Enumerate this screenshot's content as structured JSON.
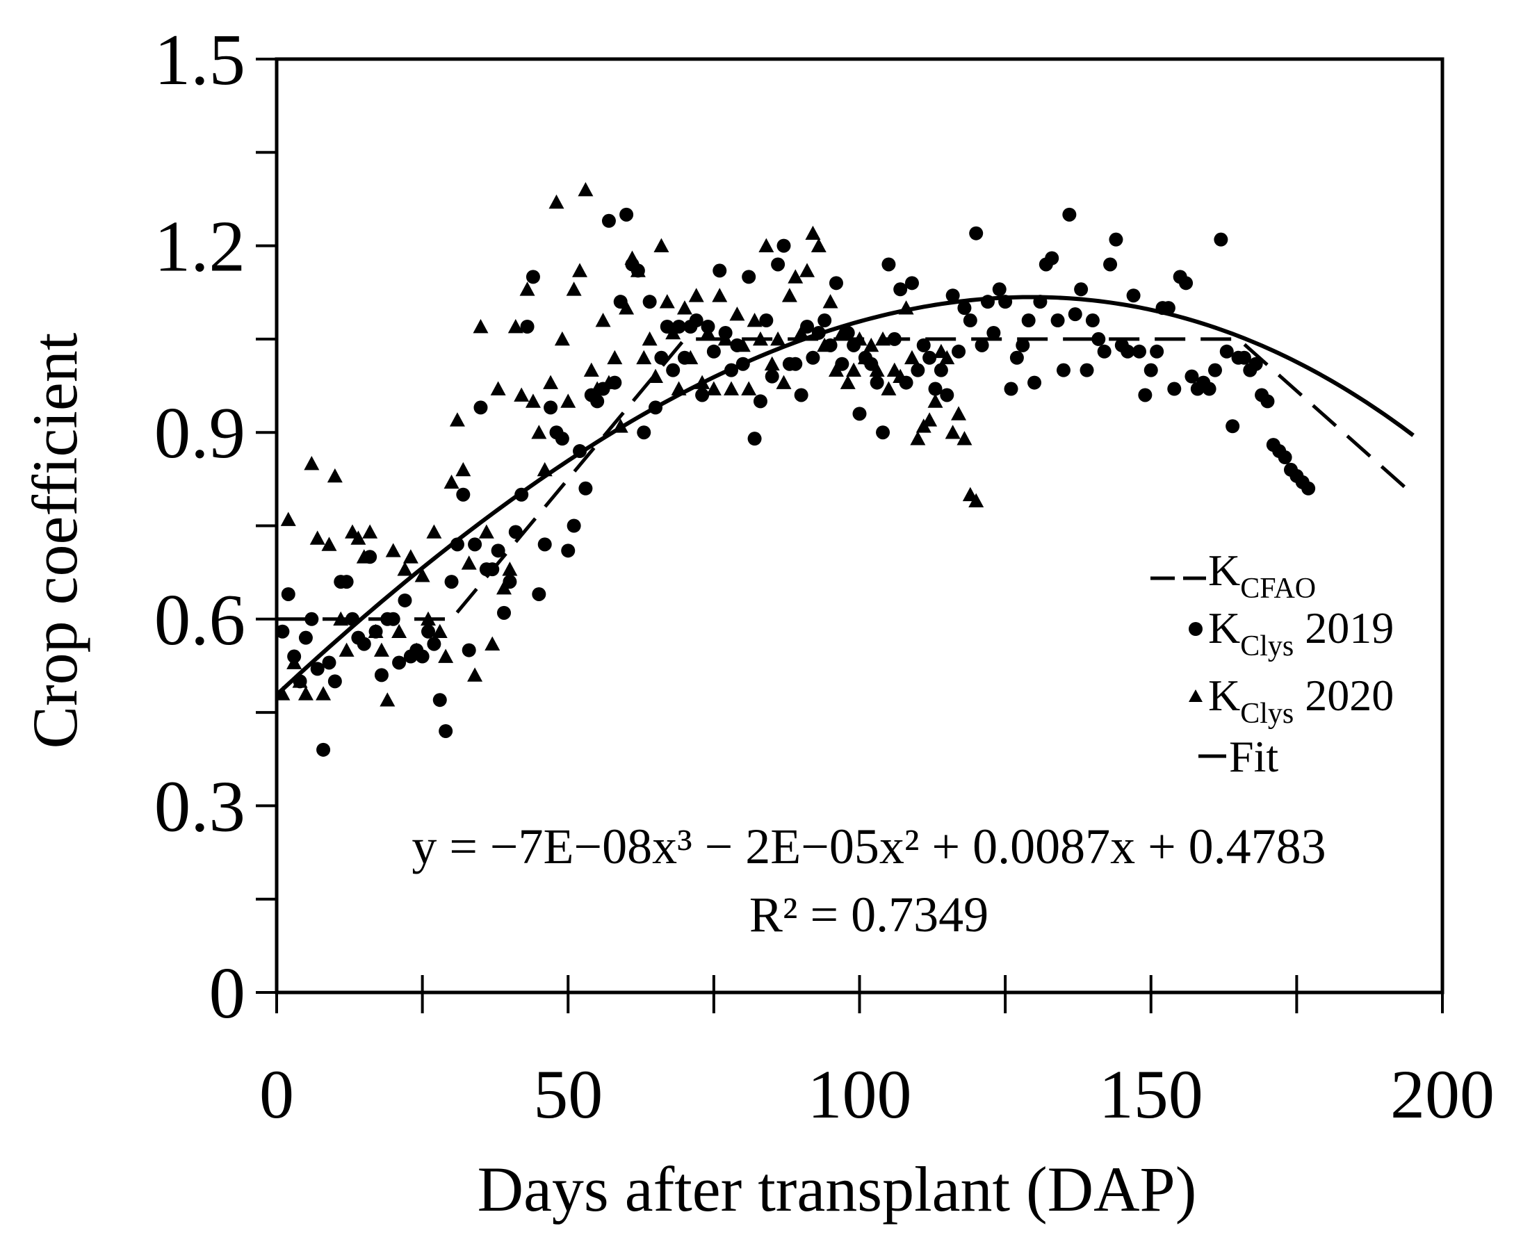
{
  "chart_data": {
    "type": "scatter",
    "title": "",
    "xlabel": "Days after transplant (DAP)",
    "ylabel": "Crop coefficient",
    "xlim": [
      0,
      200
    ],
    "ylim": [
      0,
      1.5
    ],
    "x_ticks": [
      0,
      50,
      100,
      150,
      200
    ],
    "x_tick_labels": [
      "0",
      "50",
      "100",
      "150",
      "200"
    ],
    "y_ticks": [
      0,
      0.3,
      0.6,
      0.9,
      1.2,
      1.5
    ],
    "y_tick_labels": [
      "0",
      "0.3",
      "0.6",
      "0.9",
      "1.2",
      "1.5"
    ],
    "grid": false,
    "legend_position": "right",
    "legend": [
      {
        "key": "fao",
        "marker": "dash",
        "label": "K",
        "subscript": "CFAO",
        "suffix": ""
      },
      {
        "key": "lys2019",
        "marker": "circle",
        "label": "K",
        "subscript": "Clys",
        "suffix": " 2019"
      },
      {
        "key": "lys2020",
        "marker": "triangle",
        "label": "K",
        "subscript": "Clys",
        "suffix": " 2020"
      },
      {
        "key": "fit",
        "marker": "line",
        "label": "Fit",
        "subscript": "",
        "suffix": ""
      }
    ],
    "equation": "y = −7E−08x³ − 2E−05x² + 0.0087x + 0.4783",
    "r_squared": "R² = 0.7349",
    "fit_coefficients": {
      "a3": -7e-08,
      "a2": -2e-05,
      "a1": 0.0087,
      "a0": 0.4783
    },
    "fit_range": [
      0,
      195
    ],
    "series": [
      {
        "name": "KcFAO",
        "style": "dashed-line",
        "points": [
          [
            0,
            0.6
          ],
          [
            30,
            0.6
          ],
          [
            70,
            1.05
          ],
          [
            165,
            1.05
          ],
          [
            195,
            0.8
          ]
        ]
      },
      {
        "name": "Kclys 2019",
        "style": "circle",
        "points": [
          [
            1,
            0.58
          ],
          [
            2,
            0.64
          ],
          [
            3,
            0.54
          ],
          [
            4,
            0.5
          ],
          [
            5,
            0.57
          ],
          [
            6,
            0.6
          ],
          [
            7,
            0.52
          ],
          [
            8,
            0.39
          ],
          [
            9,
            0.53
          ],
          [
            10,
            0.5
          ],
          [
            11,
            0.66
          ],
          [
            12,
            0.66
          ],
          [
            13,
            0.6
          ],
          [
            14,
            0.57
          ],
          [
            15,
            0.56
          ],
          [
            16,
            0.7
          ],
          [
            17,
            0.58
          ],
          [
            18,
            0.51
          ],
          [
            19,
            0.6
          ],
          [
            20,
            0.6
          ],
          [
            21,
            0.53
          ],
          [
            22,
            0.63
          ],
          [
            23,
            0.54
          ],
          [
            24,
            0.55
          ],
          [
            25,
            0.54
          ],
          [
            26,
            0.58
          ],
          [
            27,
            0.56
          ],
          [
            28,
            0.47
          ],
          [
            29,
            0.42
          ],
          [
            30,
            0.66
          ],
          [
            31,
            0.72
          ],
          [
            32,
            0.8
          ],
          [
            33,
            0.55
          ],
          [
            34,
            0.72
          ],
          [
            35,
            0.94
          ],
          [
            36,
            0.68
          ],
          [
            37,
            0.68
          ],
          [
            38,
            0.71
          ],
          [
            39,
            0.61
          ],
          [
            40,
            0.66
          ],
          [
            41,
            0.74
          ],
          [
            42,
            0.8
          ],
          [
            43,
            1.07
          ],
          [
            44,
            1.15
          ],
          [
            45,
            0.64
          ],
          [
            46,
            0.72
          ],
          [
            47,
            0.94
          ],
          [
            48,
            0.9
          ],
          [
            49,
            0.89
          ],
          [
            50,
            0.71
          ],
          [
            51,
            0.75
          ],
          [
            52,
            0.87
          ],
          [
            53,
            0.81
          ],
          [
            54,
            0.96
          ],
          [
            55,
            0.95
          ],
          [
            56,
            0.97
          ],
          [
            57,
            1.24
          ],
          [
            58,
            0.98
          ],
          [
            59,
            1.11
          ],
          [
            60,
            1.25
          ],
          [
            61,
            1.17
          ],
          [
            62,
            1.16
          ],
          [
            63,
            0.9
          ],
          [
            64,
            1.11
          ],
          [
            65,
            0.94
          ],
          [
            66,
            1.02
          ],
          [
            67,
            1.07
          ],
          [
            68,
            1.0
          ],
          [
            69,
            1.07
          ],
          [
            70,
            1.02
          ],
          [
            71,
            1.07
          ],
          [
            72,
            1.08
          ],
          [
            73,
            0.96
          ],
          [
            74,
            1.07
          ],
          [
            75,
            1.03
          ],
          [
            76,
            1.16
          ],
          [
            77,
            1.06
          ],
          [
            78,
            1.0
          ],
          [
            79,
            1.04
          ],
          [
            80,
            1.01
          ],
          [
            81,
            1.15
          ],
          [
            82,
            0.89
          ],
          [
            83,
            0.95
          ],
          [
            84,
            1.08
          ],
          [
            85,
            0.99
          ],
          [
            86,
            1.17
          ],
          [
            87,
            1.2
          ],
          [
            88,
            1.01
          ],
          [
            89,
            1.01
          ],
          [
            90,
            0.96
          ],
          [
            91,
            1.07
          ],
          [
            92,
            1.02
          ],
          [
            93,
            1.06
          ],
          [
            94,
            1.08
          ],
          [
            95,
            1.04
          ],
          [
            96,
            1.14
          ],
          [
            97,
            1.01
          ],
          [
            98,
            1.06
          ],
          [
            99,
            1.04
          ],
          [
            100,
            0.93
          ],
          [
            101,
            1.02
          ],
          [
            102,
            1.01
          ],
          [
            103,
            0.98
          ],
          [
            104,
            0.9
          ],
          [
            105,
            1.17
          ],
          [
            106,
            1.05
          ],
          [
            107,
            1.13
          ],
          [
            108,
            0.98
          ],
          [
            109,
            1.14
          ],
          [
            110,
            1.0
          ],
          [
            111,
            1.04
          ],
          [
            112,
            1.02
          ],
          [
            113,
            0.97
          ],
          [
            114,
            1.0
          ],
          [
            115,
            0.96
          ],
          [
            116,
            1.12
          ],
          [
            117,
            1.03
          ],
          [
            118,
            1.1
          ],
          [
            119,
            1.08
          ],
          [
            120,
            1.22
          ],
          [
            121,
            1.04
          ],
          [
            122,
            1.11
          ],
          [
            123,
            1.06
          ],
          [
            124,
            1.13
          ],
          [
            125,
            1.11
          ],
          [
            126,
            0.97
          ],
          [
            127,
            1.02
          ],
          [
            128,
            1.04
          ],
          [
            129,
            1.08
          ],
          [
            130,
            0.98
          ],
          [
            131,
            1.11
          ],
          [
            132,
            1.17
          ],
          [
            133,
            1.18
          ],
          [
            134,
            1.08
          ],
          [
            135,
            1.0
          ],
          [
            136,
            1.25
          ],
          [
            137,
            1.09
          ],
          [
            138,
            1.13
          ],
          [
            139,
            1.0
          ],
          [
            140,
            1.08
          ],
          [
            141,
            1.05
          ],
          [
            142,
            1.03
          ],
          [
            143,
            1.17
          ],
          [
            144,
            1.21
          ],
          [
            145,
            1.04
          ],
          [
            146,
            1.03
          ],
          [
            147,
            1.12
          ],
          [
            148,
            1.03
          ],
          [
            149,
            0.96
          ],
          [
            150,
            1.0
          ],
          [
            151,
            1.03
          ],
          [
            152,
            1.1
          ],
          [
            153,
            1.1
          ],
          [
            154,
            0.97
          ],
          [
            155,
            1.15
          ],
          [
            156,
            1.14
          ],
          [
            157,
            0.99
          ],
          [
            158,
            0.97
          ],
          [
            159,
            0.98
          ],
          [
            160,
            0.97
          ],
          [
            161,
            1.0
          ],
          [
            162,
            1.21
          ],
          [
            163,
            1.03
          ],
          [
            164,
            0.91
          ],
          [
            165,
            1.02
          ],
          [
            166,
            1.02
          ],
          [
            167,
            1.0
          ],
          [
            168,
            1.01
          ],
          [
            169,
            0.96
          ],
          [
            170,
            0.95
          ],
          [
            171,
            0.88
          ],
          [
            172,
            0.87
          ],
          [
            173,
            0.86
          ],
          [
            174,
            0.84
          ],
          [
            175,
            0.83
          ],
          [
            176,
            0.82
          ],
          [
            177,
            0.81
          ]
        ]
      },
      {
        "name": "Kclys 2020",
        "style": "triangle",
        "points": [
          [
            1,
            0.48
          ],
          [
            2,
            0.76
          ],
          [
            3,
            0.53
          ],
          [
            4,
            0.5
          ],
          [
            5,
            0.48
          ],
          [
            6,
            0.85
          ],
          [
            7,
            0.73
          ],
          [
            8,
            0.48
          ],
          [
            9,
            0.72
          ],
          [
            10,
            0.83
          ],
          [
            11,
            0.6
          ],
          [
            12,
            0.55
          ],
          [
            13,
            0.74
          ],
          [
            14,
            0.73
          ],
          [
            15,
            0.7
          ],
          [
            16,
            0.74
          ],
          [
            17,
            0.58
          ],
          [
            18,
            0.55
          ],
          [
            19,
            0.47
          ],
          [
            20,
            0.71
          ],
          [
            21,
            0.58
          ],
          [
            22,
            0.68
          ],
          [
            23,
            0.7
          ],
          [
            24,
            0.55
          ],
          [
            25,
            0.67
          ],
          [
            26,
            0.6
          ],
          [
            27,
            0.74
          ],
          [
            28,
            0.58
          ],
          [
            29,
            0.54
          ],
          [
            30,
            0.82
          ],
          [
            31,
            0.92
          ],
          [
            32,
            0.84
          ],
          [
            33,
            0.69
          ],
          [
            34,
            0.51
          ],
          [
            35,
            1.07
          ],
          [
            36,
            0.74
          ],
          [
            37,
            0.56
          ],
          [
            38,
            0.97
          ],
          [
            39,
            0.65
          ],
          [
            40,
            0.68
          ],
          [
            41,
            1.07
          ],
          [
            42,
            0.96
          ],
          [
            43,
            1.13
          ],
          [
            44,
            0.95
          ],
          [
            45,
            0.9
          ],
          [
            46,
            0.84
          ],
          [
            47,
            0.98
          ],
          [
            48,
            1.27
          ],
          [
            49,
            1.05
          ],
          [
            50,
            0.95
          ],
          [
            51,
            1.13
          ],
          [
            52,
            1.16
          ],
          [
            53,
            1.29
          ],
          [
            54,
            1.0
          ],
          [
            55,
            0.97
          ],
          [
            56,
            1.08
          ],
          [
            57,
            0.98
          ],
          [
            58,
            1.02
          ],
          [
            59,
            0.91
          ],
          [
            60,
            1.1
          ],
          [
            61,
            1.18
          ],
          [
            62,
            1.16
          ],
          [
            63,
            1.02
          ],
          [
            64,
            1.05
          ],
          [
            65,
            0.99
          ],
          [
            66,
            1.2
          ],
          [
            67,
            1.11
          ],
          [
            68,
            1.06
          ],
          [
            69,
            0.97
          ],
          [
            70,
            1.1
          ],
          [
            71,
            1.02
          ],
          [
            72,
            1.12
          ],
          [
            73,
            0.98
          ],
          [
            74,
            1.06
          ],
          [
            75,
            0.97
          ],
          [
            76,
            1.12
          ],
          [
            77,
            1.05
          ],
          [
            78,
            0.97
          ],
          [
            79,
            1.09
          ],
          [
            80,
            1.04
          ],
          [
            81,
            0.97
          ],
          [
            82,
            1.08
          ],
          [
            83,
            1.05
          ],
          [
            84,
            1.2
          ],
          [
            85,
            1.01
          ],
          [
            86,
            1.05
          ],
          [
            87,
            0.98
          ],
          [
            88,
            1.12
          ],
          [
            89,
            1.15
          ],
          [
            90,
            1.06
          ],
          [
            91,
            1.16
          ],
          [
            92,
            1.22
          ],
          [
            93,
            1.2
          ],
          [
            94,
            1.04
          ],
          [
            95,
            1.11
          ],
          [
            96,
            1.0
          ],
          [
            97,
            1.06
          ],
          [
            98,
            0.98
          ],
          [
            99,
            1.0
          ],
          [
            100,
            1.05
          ],
          [
            101,
            1.02
          ],
          [
            102,
            1.04
          ],
          [
            103,
            1.0
          ],
          [
            104,
            1.05
          ],
          [
            105,
            0.97
          ],
          [
            106,
            1.0
          ],
          [
            107,
            0.99
          ],
          [
            108,
            1.1
          ],
          [
            109,
            1.02
          ],
          [
            110,
            0.89
          ],
          [
            111,
            0.91
          ],
          [
            112,
            0.92
          ],
          [
            113,
            0.95
          ],
          [
            114,
            1.03
          ],
          [
            115,
            1.02
          ],
          [
            116,
            0.9
          ],
          [
            117,
            0.93
          ],
          [
            118,
            0.89
          ],
          [
            119,
            0.8
          ],
          [
            120,
            0.79
          ]
        ]
      }
    ]
  }
}
